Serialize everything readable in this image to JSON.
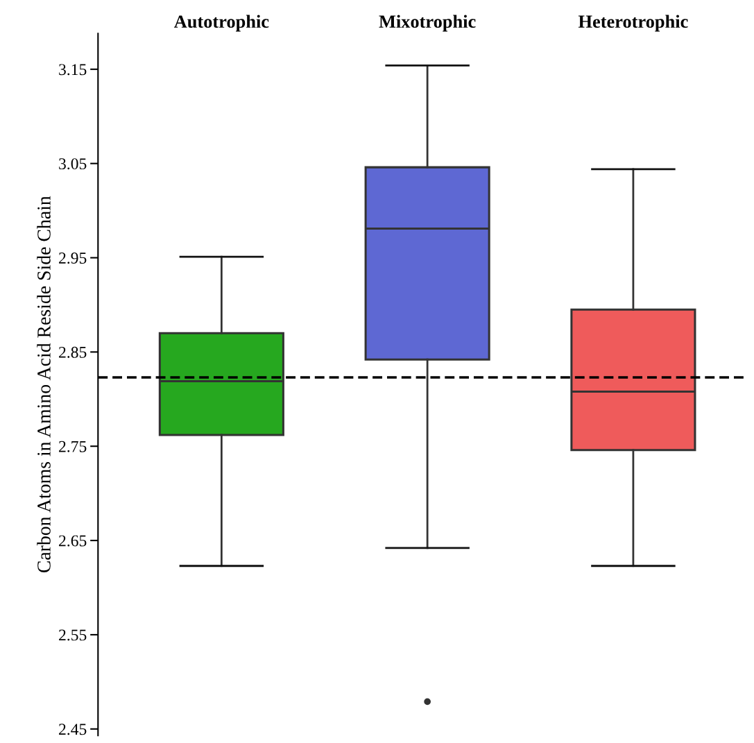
{
  "chart_data": {
    "type": "box",
    "ylabel": "Carbon Atoms in Amino Acid Reside Side Chain",
    "categories": [
      "Autotrophic",
      "Mixotrophic",
      "Heterotrophic"
    ],
    "colors": [
      "#26a81f",
      "#5e68d3",
      "#ef5b5b"
    ],
    "boxes": [
      {
        "low": 2.623,
        "q1": 2.762,
        "median": 2.819,
        "q3": 2.87,
        "high": 2.951
      },
      {
        "low": 2.642,
        "q1": 2.842,
        "median": 2.981,
        "q3": 3.046,
        "high": 3.154,
        "outliers": [
          2.479
        ]
      },
      {
        "low": 2.623,
        "q1": 2.746,
        "median": 2.808,
        "q3": 2.895,
        "high": 3.044
      }
    ],
    "ylim": [
      2.443,
      3.188
    ],
    "yticks": [
      2.45,
      2.55,
      2.65,
      2.75,
      2.85,
      2.95,
      3.05,
      3.15
    ],
    "ref_lines": [
      {
        "axis": "y",
        "value": 2.823,
        "color": "#000000",
        "line_style": "dashed"
      }
    ],
    "grid": false,
    "legend": false
  }
}
